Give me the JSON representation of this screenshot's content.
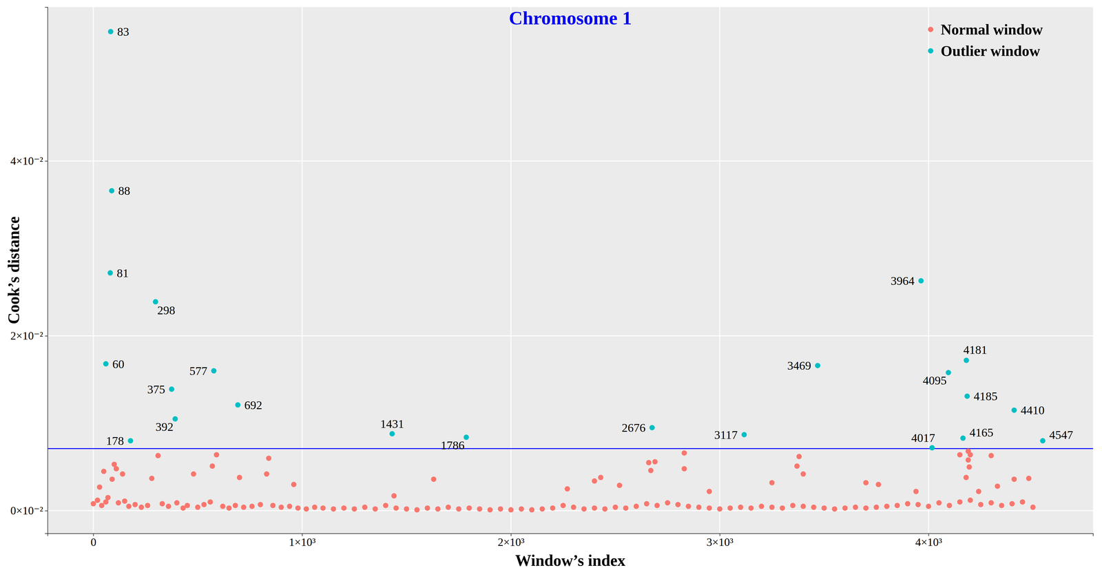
{
  "chart_data": {
    "type": "scatter",
    "title": "Chromosome 1",
    "x_label": "Window’s index",
    "y_label": "Cook’s distance",
    "xlim": [
      -219,
      4788
    ],
    "ylim": [
      -0.0026,
      0.0576
    ],
    "xticks": [
      0,
      {
        "value": 1000,
        "label": "1×10³"
      },
      {
        "value": 2000,
        "label": "2×10³"
      },
      {
        "value": 3000,
        "label": "3×10³"
      },
      {
        "value": 4000,
        "label": "4×10³"
      }
    ],
    "yticks": [
      {
        "value": 0,
        "label": "0×10⁻²"
      },
      {
        "value": 0.02,
        "label": "2×10⁻²"
      },
      {
        "value": 0.04,
        "label": "4×10⁻²"
      }
    ],
    "grid": true,
    "legend": "top-right",
    "hline": 0.0071,
    "series": [
      {
        "name": "Normal window",
        "color": "#F8766D",
        "marker": "circle",
        "x": [
          0,
          20,
          40,
          60,
          70,
          120,
          150,
          170,
          200,
          230,
          260,
          330,
          360,
          400,
          430,
          450,
          500,
          530,
          560,
          620,
          650,
          680,
          720,
          760,
          800,
          860,
          900,
          940,
          980,
          1020,
          1060,
          1100,
          1150,
          1200,
          1250,
          1300,
          1350,
          1400,
          1450,
          1500,
          1550,
          1600,
          1650,
          1700,
          1750,
          1800,
          1850,
          1900,
          1950,
          2000,
          2050,
          2100,
          2150,
          2200,
          2250,
          2300,
          2350,
          2400,
          2450,
          2500,
          2550,
          2600,
          2650,
          2700,
          2750,
          2800,
          2850,
          2900,
          2950,
          3000,
          3050,
          3100,
          3150,
          3200,
          3250,
          3300,
          3350,
          3400,
          3450,
          3500,
          3550,
          3600,
          3650,
          3700,
          3750,
          3800,
          3850,
          3900,
          3950,
          4000,
          4050,
          4100,
          4150,
          4200,
          4250,
          4300,
          4350,
          4400,
          4450,
          4500,
          310,
          590,
          570,
          840,
          830,
          100,
          110,
          90,
          50,
          30,
          140,
          280,
          480,
          700,
          960,
          1630,
          1440,
          2270,
          2430,
          2400,
          2520,
          2660,
          2690,
          2670,
          2830,
          2830,
          2950,
          3380,
          3370,
          3400,
          3250,
          3700,
          3760,
          4150,
          4190,
          4200,
          4190,
          4195,
          4180,
          4300,
          4330,
          4410,
          4480,
          3940,
          4240
        ],
        "values": [
          0.0008,
          0.0012,
          0.0006,
          0.001,
          0.0015,
          0.0009,
          0.0011,
          0.0005,
          0.0007,
          0.0004,
          0.0006,
          0.0008,
          0.0005,
          0.0009,
          0.0003,
          0.0006,
          0.0004,
          0.0007,
          0.001,
          0.0005,
          0.0003,
          0.0006,
          0.0004,
          0.0005,
          0.0007,
          0.0006,
          0.0004,
          0.0005,
          0.0003,
          0.0002,
          0.0004,
          0.0003,
          0.0002,
          0.0003,
          0.0002,
          0.0004,
          0.0002,
          0.0006,
          0.0003,
          0.0002,
          0.0001,
          0.0003,
          0.0002,
          0.0004,
          0.0002,
          0.0003,
          0.0002,
          0.0001,
          0.0002,
          0.0001,
          0.0002,
          0.0001,
          0.0002,
          0.0003,
          0.0006,
          0.0004,
          0.0002,
          0.0003,
          0.0002,
          0.0004,
          0.0003,
          0.0005,
          0.0008,
          0.0006,
          0.0009,
          0.0007,
          0.0005,
          0.0004,
          0.0003,
          0.0002,
          0.0003,
          0.0004,
          0.0003,
          0.0005,
          0.0004,
          0.0003,
          0.0006,
          0.0005,
          0.0004,
          0.0003,
          0.0002,
          0.0003,
          0.0004,
          0.0003,
          0.0004,
          0.0005,
          0.0006,
          0.0008,
          0.0007,
          0.0005,
          0.0009,
          0.0006,
          0.001,
          0.0012,
          0.0007,
          0.0009,
          0.0006,
          0.0008,
          0.001,
          0.0004,
          0.0063,
          0.0064,
          0.0051,
          0.006,
          0.0042,
          0.0053,
          0.0048,
          0.0036,
          0.0045,
          0.0027,
          0.0042,
          0.0037,
          0.0042,
          0.0038,
          0.003,
          0.0036,
          0.0017,
          0.0025,
          0.0038,
          0.0034,
          0.0029,
          0.0055,
          0.0056,
          0.0046,
          0.0066,
          0.0048,
          0.0022,
          0.0062,
          0.0051,
          0.0042,
          0.0032,
          0.0032,
          0.003,
          0.0064,
          0.0068,
          0.0064,
          0.0058,
          0.005,
          0.0038,
          0.0063,
          0.0028,
          0.0036,
          0.0037,
          0.0022,
          0.0022
        ]
      },
      {
        "name": "Outlier window",
        "color": "#00BFC4",
        "marker": "circle",
        "data_labels": true,
        "x": [
          60,
          81,
          83,
          88,
          178,
          298,
          375,
          392,
          577,
          692,
          1431,
          1786,
          2676,
          3117,
          3469,
          3964,
          4017,
          4095,
          4165,
          4181,
          4185,
          4410,
          4547
        ],
        "values": [
          0.0168,
          0.0272,
          0.0548,
          0.0366,
          0.008,
          0.0239,
          0.0139,
          0.0105,
          0.016,
          0.0121,
          0.0088,
          0.0084,
          0.0095,
          0.0087,
          0.0166,
          0.0263,
          0.0072,
          0.0158,
          0.0083,
          0.0172,
          0.0131,
          0.0115,
          0.008
        ]
      }
    ]
  }
}
